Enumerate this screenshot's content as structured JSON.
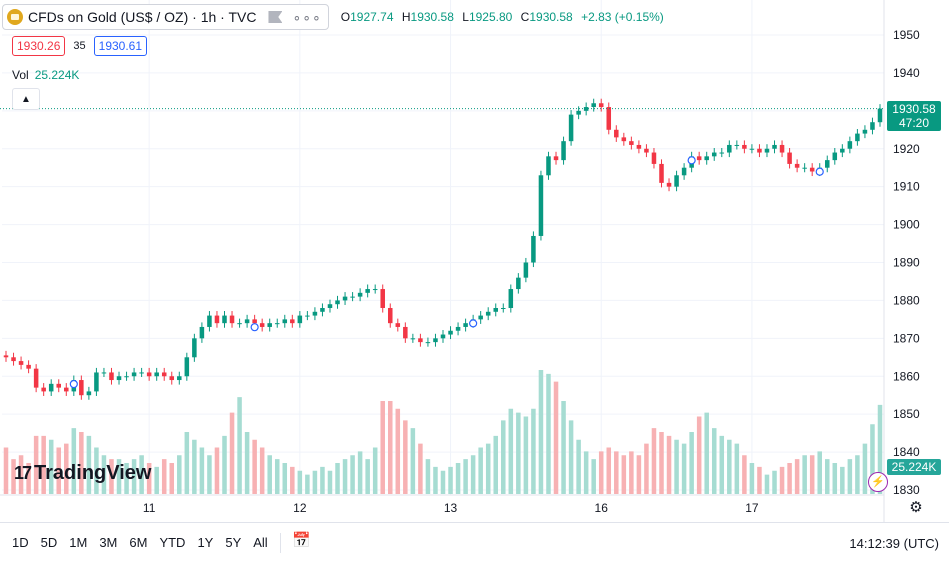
{
  "header": {
    "symbol_title": "CFDs on Gold (US$ / OZ) · 1h · TVC",
    "more_glyph": "∘∘∘",
    "ohlc": {
      "o_label": "O",
      "o": "1927.74",
      "h_label": "H",
      "h": "1930.58",
      "l_label": "L",
      "l": "1925.80",
      "c_label": "C",
      "c": "1930.58",
      "change": "+2.83 (+0.15%)"
    },
    "bid": "1930.26",
    "spread": "35",
    "ask": "1930.61",
    "vol_label": "Vol",
    "vol_value": "25.224K"
  },
  "logo_text": "TradingView",
  "logo_mark": "17",
  "price_tag": {
    "price": "1930.58",
    "countdown": "47:20"
  },
  "volume_tag": "25.224K",
  "colors": {
    "up": "#089981",
    "down": "#f23645",
    "vol_up": "#a6dcd2",
    "vol_down": "#f7b1b3",
    "gold": "#e0a81e"
  },
  "toolbar": {
    "ranges": [
      "1D",
      "5D",
      "1M",
      "3M",
      "6M",
      "YTD",
      "1Y",
      "5Y",
      "All"
    ],
    "clock": "14:12:39 (UTC)"
  },
  "chart_data": {
    "type": "candlestick",
    "title": "CFDs on Gold (US$ / OZ)",
    "interval": "1h",
    "y_ticks": [
      1830,
      1840,
      1850,
      1860,
      1870,
      1880,
      1890,
      1900,
      1910,
      1920,
      1930,
      1940,
      1950
    ],
    "ylim": [
      1828,
      1954
    ],
    "x_tick_labels": [
      "11",
      "12",
      "13",
      "16",
      "17"
    ],
    "x_tick_index": [
      19,
      39,
      59,
      79,
      99
    ],
    "last_price": 1930.58,
    "closes": [
      1865,
      1864,
      1863,
      1862,
      1857,
      1856,
      1858,
      1857,
      1856,
      1859,
      1855,
      1856,
      1861,
      1861,
      1859,
      1860,
      1860,
      1861,
      1861,
      1860,
      1861,
      1860,
      1859,
      1860,
      1865,
      1870,
      1873,
      1876,
      1874,
      1876,
      1874,
      1874,
      1875,
      1874,
      1873,
      1874,
      1874,
      1875,
      1874,
      1876,
      1876,
      1877,
      1878,
      1879,
      1880,
      1881,
      1881,
      1882,
      1883,
      1883,
      1878,
      1874,
      1873,
      1870,
      1870,
      1869,
      1869,
      1870,
      1871,
      1872,
      1873,
      1874,
      1875,
      1876,
      1877,
      1878,
      1878,
      1883,
      1886,
      1890,
      1897,
      1913,
      1918,
      1917,
      1922,
      1929,
      1930,
      1931,
      1932,
      1931,
      1925,
      1923,
      1922,
      1921,
      1920,
      1919,
      1916,
      1911,
      1910,
      1913,
      1915,
      1918,
      1917,
      1918,
      1919,
      1919,
      1921,
      1921,
      1920,
      1920,
      1919,
      1920,
      1921,
      1919,
      1916,
      1915,
      1915,
      1914,
      1915,
      1917,
      1919,
      1920,
      1922,
      1924,
      1925,
      1927,
      1930.58
    ],
    "volumes": [
      12,
      9,
      10,
      8,
      15,
      15,
      14,
      12,
      13,
      17,
      16,
      15,
      12,
      10,
      9,
      9,
      8,
      9,
      10,
      8,
      7,
      9,
      8,
      10,
      16,
      14,
      12,
      10,
      12,
      15,
      21,
      25,
      16,
      14,
      12,
      10,
      9,
      8,
      7,
      6,
      5,
      6,
      7,
      6,
      8,
      9,
      10,
      11,
      9,
      12,
      24,
      24,
      22,
      19,
      17,
      13,
      9,
      7,
      6,
      7,
      8,
      9,
      10,
      12,
      13,
      15,
      19,
      22,
      21,
      20,
      22,
      32,
      31,
      29,
      24,
      19,
      14,
      11,
      9,
      11,
      12,
      11,
      10,
      11,
      10,
      13,
      17,
      16,
      15,
      14,
      13,
      16,
      20,
      21,
      17,
      15,
      14,
      13,
      10,
      8,
      7,
      5,
      6,
      7,
      8,
      9,
      10,
      10,
      11,
      9,
      8,
      7,
      9,
      10,
      13,
      18,
      23
    ]
  }
}
